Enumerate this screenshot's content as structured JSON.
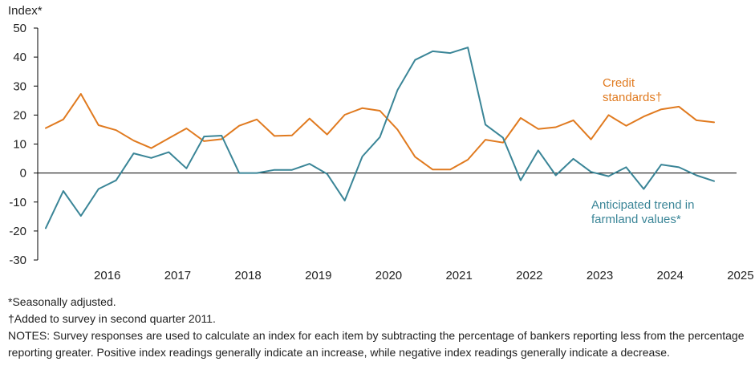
{
  "chart_data": {
    "type": "line",
    "ylabel": "Index*",
    "ylim": [
      -30,
      50
    ],
    "yticks": [
      -30,
      -20,
      -10,
      0,
      10,
      20,
      30,
      40,
      50
    ],
    "x_labels": [
      "2016",
      "2017",
      "2018",
      "2019",
      "2020",
      "2021",
      "2022",
      "2023",
      "2024",
      "2025"
    ],
    "x_start": 2015.5,
    "x_step": 0.25,
    "series": [
      {
        "name": "Credit standards†",
        "label_lines": [
          "Credit",
          "standards†"
        ],
        "color": "#E07A1F",
        "values": [
          15.5,
          18.5,
          27.3,
          16.5,
          14.8,
          11.2,
          8.6,
          12.0,
          15.4,
          11.0,
          11.7,
          16.3,
          18.5,
          12.8,
          13.0,
          18.8,
          13.3,
          20.1,
          22.4,
          21.5,
          15.0,
          5.6,
          1.2,
          1.2,
          4.6,
          11.5,
          10.5,
          19.0,
          15.2,
          15.8,
          18.2,
          11.6,
          20.0,
          16.3,
          19.5,
          22.0,
          22.9,
          18.2,
          17.5
        ]
      },
      {
        "name": "Anticipated trend in farmland values*",
        "label_lines": [
          "Anticipated trend in",
          "farmland values*"
        ],
        "color": "#3A8597",
        "values": [
          -19.0,
          -6.2,
          -14.8,
          -5.5,
          -2.5,
          6.8,
          5.2,
          7.2,
          1.6,
          12.6,
          12.9,
          0.0,
          0.0,
          1.1,
          1.1,
          3.2,
          -0.3,
          -9.5,
          5.7,
          12.4,
          28.6,
          39.0,
          42.0,
          41.4,
          43.3,
          16.7,
          12.2,
          -2.5,
          7.8,
          -0.8,
          4.9,
          0.4,
          -1.1,
          2.0,
          -5.5,
          2.9,
          2.0,
          -0.8,
          -2.8
        ]
      }
    ]
  },
  "notes": {
    "seasonal": "*Seasonally adjusted.",
    "added": "†Added to survey in second quarter 2011.",
    "text": "NOTES: Survey responses are used to calculate an index for each item by subtracting the percentage of bankers reporting less from the percentage reporting greater. Positive index readings generally indicate an increase, while negative index readings generally indicate a decrease."
  }
}
